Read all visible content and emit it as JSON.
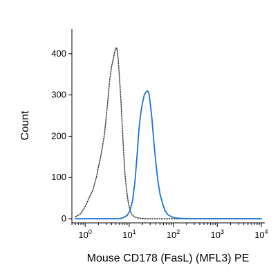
{
  "chart_data": {
    "type": "line",
    "title": "",
    "xlabel": "Mouse CD178 (FasL) (MFL3) PE",
    "ylabel": "Count",
    "x_scale": "log",
    "xlim": [
      0.5,
      12000
    ],
    "ylim": [
      -10,
      460
    ],
    "grid": false,
    "legend": "none",
    "y_ticks": [
      {
        "value": 0,
        "label": "0"
      },
      {
        "value": 100,
        "label": "100"
      },
      {
        "value": 200,
        "label": "200"
      },
      {
        "value": 300,
        "label": "300"
      },
      {
        "value": 400,
        "label": "400"
      }
    ],
    "x_ticks": [
      {
        "value": 1,
        "base": "10",
        "exp": "0"
      },
      {
        "value": 10,
        "base": "10",
        "exp": "1"
      },
      {
        "value": 100,
        "base": "10",
        "exp": "2"
      },
      {
        "value": 1000,
        "base": "10",
        "exp": "3"
      },
      {
        "value": 10000,
        "base": "10",
        "exp": "4"
      }
    ],
    "series": [
      {
        "style": "dotted",
        "color": "#444444",
        "x": [
          0.6,
          0.8,
          1.0,
          1.2,
          1.5,
          1.8,
          2.0,
          2.3,
          2.7,
          3.0,
          3.3,
          3.6,
          4.0,
          4.4,
          4.8,
          5.2,
          5.6,
          6.0,
          6.5,
          7.0,
          7.5,
          8.0,
          8.7,
          9.5,
          10.5,
          11.5,
          13.0,
          15.0,
          18.0,
          25.0,
          100.0,
          10000.0
        ],
        "y": [
          5,
          12,
          30,
          48,
          70,
          100,
          125,
          155,
          200,
          245,
          290,
          335,
          370,
          390,
          410,
          415,
          390,
          345,
          285,
          220,
          160,
          110,
          70,
          40,
          20,
          10,
          5,
          2,
          1,
          0,
          0,
          0
        ]
      },
      {
        "style": "solid",
        "color": "#1a73d9",
        "x": [
          0.6,
          6.0,
          7.5,
          9.0,
          10.5,
          12.0,
          13.5,
          15.0,
          16.5,
          18.0,
          20.0,
          22.0,
          24.0,
          26.0,
          28.0,
          30.0,
          33.0,
          36.0,
          40.0,
          45.0,
          50.0,
          58.0,
          65.0,
          75.0,
          90.0,
          110.0,
          140.0,
          200.0,
          10000.0
        ],
        "y": [
          0,
          0,
          3,
          8,
          20,
          45,
          90,
          150,
          210,
          250,
          280,
          300,
          307,
          310,
          305,
          280,
          240,
          190,
          140,
          90,
          60,
          35,
          20,
          10,
          5,
          2,
          1,
          0,
          0
        ]
      }
    ]
  }
}
